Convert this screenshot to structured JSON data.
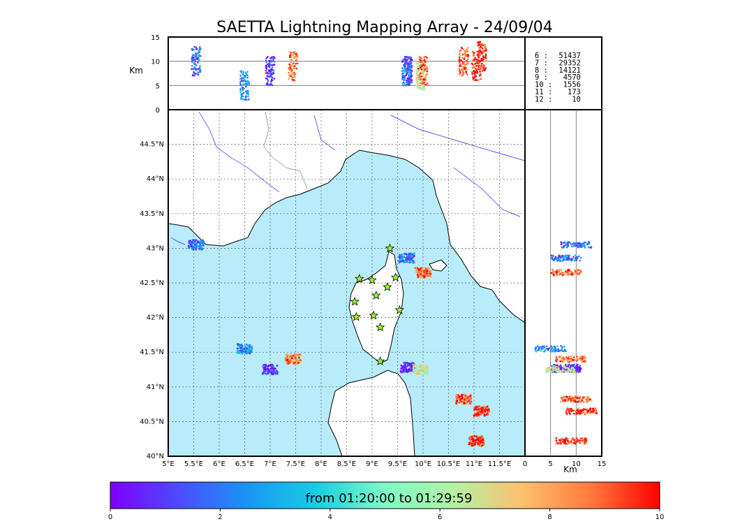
{
  "chart_data": {
    "type": "scatter",
    "title": "SAETTA Lightning Mapping Array - 24/09/04",
    "map": {
      "x_ticks": [
        "5°E",
        "5.5°E",
        "6°E",
        "6.5°E",
        "7°E",
        "7.5°E",
        "8°E",
        "8.5°E",
        "9°E",
        "9.5°E",
        "10°E",
        "10.5°E",
        "11°E",
        "11.5°E"
      ],
      "y_ticks": [
        "40°N",
        "40.5°N",
        "41°N",
        "41.5°N",
        "42°N",
        "42.5°N",
        "43°N",
        "43.5°N",
        "44°N",
        "44.5°N"
      ],
      "lon_range": [
        5,
        12
      ],
      "lat_range": [
        40,
        45
      ],
      "grid": true,
      "sea_color": "#b8ecfb",
      "land_color": "#ffffff",
      "station_color": "#9cff2a"
    },
    "altitude_panel": {
      "ylabel": "Km",
      "y_ticks": [
        "0",
        "5",
        "10",
        "15"
      ],
      "y_range": [
        0,
        15
      ],
      "reference_lines": [
        5,
        10
      ]
    },
    "side_panel": {
      "xlabel": "Km",
      "x_ticks": [
        "0",
        "5",
        "10",
        "15"
      ],
      "x_range": [
        0,
        15
      ],
      "reference_lines": [
        5,
        10
      ]
    },
    "source_counts": [
      {
        "label": "6  :",
        "count": "51437",
        "color": "#000000"
      },
      {
        "label": "7  :",
        "count": "29352",
        "color": "#ff0000"
      },
      {
        "label": "8  :",
        "count": "14121",
        "color": "#000000"
      },
      {
        "label": "9  :",
        "count": "4570",
        "color": "#000000"
      },
      {
        "label": "10 :",
        "count": "1556",
        "color": "#000000"
      },
      {
        "label": "11 :",
        "count": "173",
        "color": "#000000"
      },
      {
        "label": "12 :",
        "count": "10",
        "color": "#000000"
      }
    ],
    "colorbar": {
      "label": "from 01:20:00 to 01:29:59",
      "ticks": [
        "0",
        "2",
        "4",
        "6",
        "8",
        "10"
      ],
      "range": [
        0,
        10
      ],
      "colormap": "rainbow"
    },
    "stations": [
      {
        "lon": 9.35,
        "lat": 43.0
      },
      {
        "lon": 8.75,
        "lat": 42.56
      },
      {
        "lon": 9.0,
        "lat": 42.54
      },
      {
        "lon": 9.46,
        "lat": 42.58
      },
      {
        "lon": 9.3,
        "lat": 42.44
      },
      {
        "lon": 9.08,
        "lat": 42.32
      },
      {
        "lon": 8.66,
        "lat": 42.23
      },
      {
        "lon": 9.54,
        "lat": 42.11
      },
      {
        "lon": 8.69,
        "lat": 42.01
      },
      {
        "lon": 9.03,
        "lat": 42.03
      },
      {
        "lon": 9.16,
        "lat": 41.86
      },
      {
        "lon": 9.16,
        "lat": 41.37
      }
    ],
    "lightning_clusters": [
      {
        "lon": 5.55,
        "lat": 43.05,
        "time": 1.5,
        "alt": 10
      },
      {
        "lon": 6.5,
        "lat": 41.55,
        "time": 2.5,
        "alt": 5
      },
      {
        "lon": 7.0,
        "lat": 41.25,
        "time": 1.0,
        "alt": 8
      },
      {
        "lon": 7.45,
        "lat": 41.4,
        "time": 8.5,
        "alt": 9
      },
      {
        "lon": 9.7,
        "lat": 41.28,
        "time": 0.3,
        "alt": 8
      },
      {
        "lon": 9.95,
        "lat": 41.25,
        "time": 6.5,
        "alt": 7
      },
      {
        "lon": 10.0,
        "lat": 42.65,
        "time": 8.8,
        "alt": 8
      },
      {
        "lon": 9.68,
        "lat": 42.86,
        "time": 2.0,
        "alt": 8
      },
      {
        "lon": 10.8,
        "lat": 40.82,
        "time": 9.0,
        "alt": 10
      },
      {
        "lon": 11.15,
        "lat": 40.65,
        "time": 9.5,
        "alt": 11
      },
      {
        "lon": 11.05,
        "lat": 40.22,
        "time": 9.7,
        "alt": 9
      }
    ]
  }
}
